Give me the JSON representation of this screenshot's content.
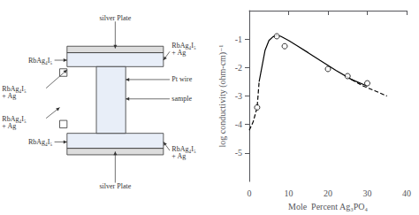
{
  "chart_data": {
    "type": "line",
    "xlabel": "Mole  Percent Ag₃PO₄",
    "ylabel": "log conductivity (ohm-cm)⁻¹",
    "xlim": [
      0,
      40
    ],
    "ylim": [
      -6,
      0
    ],
    "xticks": [
      0,
      10,
      20,
      30,
      40
    ],
    "yticks": [
      -5,
      -4,
      -3,
      -2,
      -1
    ],
    "grid": false,
    "annotations": [
      "silver Plate",
      "silver Plate",
      "RbAg₄I₅",
      "RbAg₄I₅\n+ Ag",
      "RbAg₄I₅\n+ Ag",
      "RbAg₄I₅",
      "RbAg₄I₅\n+ Ag",
      "Pt wire",
      "sample",
      "RbAg₄I₅\n+ Ag"
    ],
    "series": [
      {
        "type": "line",
        "line_style": "dashed",
        "color": "#000000",
        "x": [
          0,
          1,
          2,
          2.5
        ],
        "values": [
          -4.2,
          -3.9,
          -3.4,
          -2.5
        ]
      },
      {
        "type": "line",
        "line_style": "dashed",
        "color": "#000000",
        "x": [
          26,
          29,
          32,
          35
        ],
        "values": [
          -2.42,
          -2.65,
          -2.82,
          -3.0
        ]
      },
      {
        "type": "line",
        "line_style": "solid",
        "color": "#000000",
        "x": [
          2.5,
          4,
          5,
          6,
          7,
          8,
          10,
          12,
          15,
          18,
          22,
          26,
          30
        ],
        "values": [
          -2.5,
          -1.4,
          -1.05,
          -0.92,
          -0.87,
          -0.9,
          -1.05,
          -1.22,
          -1.48,
          -1.75,
          -2.1,
          -2.42,
          -2.65
        ]
      },
      {
        "type": "scatter",
        "marker": "open_circle",
        "color": "#000000",
        "x": [
          2,
          7,
          9,
          20,
          25,
          30
        ],
        "values": [
          -3.4,
          -0.9,
          -1.25,
          -2.05,
          -2.3,
          -2.55
        ]
      }
    ]
  }
}
